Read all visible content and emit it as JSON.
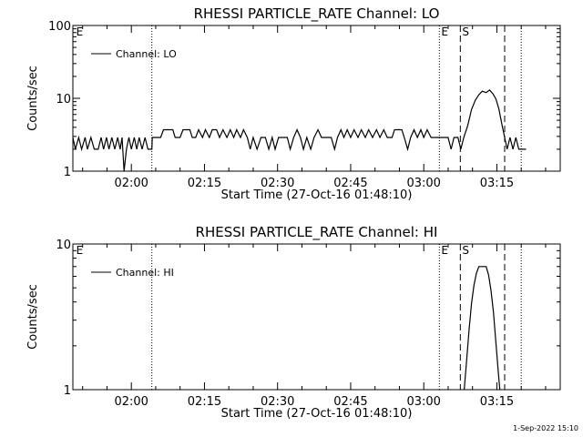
{
  "footer": {
    "timestamp": "1-Sep-2022 15:10"
  },
  "chart_data": [
    {
      "type": "line",
      "title": "RHESSI PARTICLE_RATE Channel: LO",
      "xlabel": "Start Time (27-Oct-16 01:48:10)",
      "ylabel": "Counts/sec",
      "yscale": "log",
      "ylim": [
        1,
        100
      ],
      "xlim_minutes_after_01_48": [
        0,
        100
      ],
      "yticks": [
        {
          "value": 1,
          "label": "1"
        },
        {
          "value": 10,
          "label": "10"
        },
        {
          "value": 100,
          "label": "100"
        }
      ],
      "xticks": [
        {
          "t": 12,
          "label": "02:00"
        },
        {
          "t": 27,
          "label": "02:15"
        },
        {
          "t": 42,
          "label": "02:30"
        },
        {
          "t": 57,
          "label": "02:45"
        },
        {
          "t": 72,
          "label": "03:00"
        },
        {
          "t": 87,
          "label": "03:15"
        }
      ],
      "legend": {
        "label": "Channel: LO",
        "placement": "top-left"
      },
      "markers": [
        {
          "t": 0.3,
          "label": "E",
          "style": "none"
        },
        {
          "t": 16.2,
          "label": "",
          "style": "dotted"
        },
        {
          "t": 75.2,
          "label": "E",
          "style": "dotted"
        },
        {
          "t": 79.5,
          "label": "S",
          "style": "dashed"
        },
        {
          "t": 88.6,
          "label": "",
          "style": "dashed"
        },
        {
          "t": 92.0,
          "label": "",
          "style": "dotted"
        }
      ],
      "series": [
        {
          "name": "Channel: LO",
          "points": [
            [
              0,
              2.9
            ],
            [
              0.5,
              2.0
            ],
            [
              1.2,
              2.9
            ],
            [
              1.8,
              2.0
            ],
            [
              2.5,
              2.9
            ],
            [
              3.0,
              2.0
            ],
            [
              3.7,
              2.9
            ],
            [
              4.4,
              2.0
            ],
            [
              5.2,
              2.0
            ],
            [
              5.8,
              2.9
            ],
            [
              6.3,
              2.0
            ],
            [
              6.9,
              2.9
            ],
            [
              7.4,
              2.0
            ],
            [
              8.0,
              2.9
            ],
            [
              8.6,
              2.0
            ],
            [
              9.2,
              2.9
            ],
            [
              9.7,
              2.0
            ],
            [
              10.1,
              2.9
            ],
            [
              10.5,
              1.0
            ],
            [
              11.0,
              2.0
            ],
            [
              11.5,
              2.9
            ],
            [
              12.0,
              2.0
            ],
            [
              12.6,
              2.9
            ],
            [
              13.1,
              2.0
            ],
            [
              13.6,
              2.9
            ],
            [
              14.2,
              2.0
            ],
            [
              14.8,
              2.9
            ],
            [
              15.4,
              2.0
            ],
            [
              16.2,
              2.0
            ],
            [
              16.3,
              2.9
            ],
            [
              18.0,
              2.9
            ],
            [
              18.6,
              3.7
            ],
            [
              20.5,
              3.7
            ],
            [
              21.0,
              2.9
            ],
            [
              22.0,
              2.9
            ],
            [
              22.6,
              3.7
            ],
            [
              24.0,
              3.7
            ],
            [
              24.5,
              2.9
            ],
            [
              25.2,
              2.9
            ],
            [
              25.8,
              3.7
            ],
            [
              26.6,
              2.9
            ],
            [
              27.2,
              3.7
            ],
            [
              28.0,
              2.9
            ],
            [
              28.6,
              3.7
            ],
            [
              29.5,
              3.7
            ],
            [
              30.1,
              2.9
            ],
            [
              30.8,
              3.7
            ],
            [
              31.6,
              2.9
            ],
            [
              32.3,
              3.7
            ],
            [
              33.0,
              2.9
            ],
            [
              33.6,
              3.7
            ],
            [
              34.4,
              2.9
            ],
            [
              35.0,
              3.7
            ],
            [
              35.8,
              2.9
            ],
            [
              36.4,
              2.0
            ],
            [
              37.0,
              2.9
            ],
            [
              37.8,
              2.0
            ],
            [
              38.6,
              2.9
            ],
            [
              39.5,
              2.9
            ],
            [
              40.2,
              2.0
            ],
            [
              40.9,
              2.9
            ],
            [
              41.5,
              2.0
            ],
            [
              42.2,
              2.9
            ],
            [
              44.0,
              2.9
            ],
            [
              44.6,
              2.0
            ],
            [
              45.3,
              2.9
            ],
            [
              46.0,
              3.7
            ],
            [
              46.7,
              2.9
            ],
            [
              47.3,
              2.0
            ],
            [
              48.0,
              2.9
            ],
            [
              48.8,
              2.0
            ],
            [
              49.5,
              2.9
            ],
            [
              50.3,
              3.7
            ],
            [
              51.0,
              2.9
            ],
            [
              53.0,
              2.9
            ],
            [
              53.7,
              2.0
            ],
            [
              54.3,
              2.9
            ],
            [
              55.0,
              3.7
            ],
            [
              55.6,
              2.9
            ],
            [
              56.3,
              3.7
            ],
            [
              57.0,
              2.9
            ],
            [
              57.7,
              3.7
            ],
            [
              58.5,
              2.9
            ],
            [
              59.2,
              3.7
            ],
            [
              60.0,
              2.9
            ],
            [
              60.7,
              3.7
            ],
            [
              61.5,
              2.9
            ],
            [
              62.3,
              3.7
            ],
            [
              63.0,
              2.9
            ],
            [
              63.8,
              3.7
            ],
            [
              64.5,
              2.9
            ],
            [
              65.5,
              2.9
            ],
            [
              66.0,
              3.7
            ],
            [
              67.5,
              3.7
            ],
            [
              68.0,
              2.9
            ],
            [
              68.7,
              2.0
            ],
            [
              69.3,
              2.9
            ],
            [
              70.0,
              3.7
            ],
            [
              70.7,
              2.9
            ],
            [
              71.4,
              3.7
            ],
            [
              72.0,
              2.9
            ],
            [
              72.7,
              3.7
            ],
            [
              73.5,
              2.9
            ],
            [
              77.0,
              2.9
            ],
            [
              77.6,
              2.0
            ],
            [
              78.2,
              2.9
            ],
            [
              79.0,
              2.9
            ],
            [
              79.6,
              2.0
            ],
            [
              80.2,
              2.9
            ],
            [
              81.0,
              4.2
            ],
            [
              81.8,
              7.0
            ],
            [
              82.6,
              9.5
            ],
            [
              83.3,
              11.2
            ],
            [
              84.0,
              12.5
            ],
            [
              84.8,
              12.0
            ],
            [
              85.5,
              13.0
            ],
            [
              86.2,
              11.5
            ],
            [
              86.8,
              9.8
            ],
            [
              87.4,
              7.2
            ],
            [
              88.0,
              4.5
            ],
            [
              88.6,
              2.9
            ],
            [
              89.1,
              2.0
            ],
            [
              89.7,
              2.9
            ],
            [
              90.3,
              2.0
            ],
            [
              90.9,
              2.9
            ],
            [
              91.5,
              2.0
            ],
            [
              93.0,
              2.0
            ]
          ]
        }
      ]
    },
    {
      "type": "line",
      "title": "RHESSI PARTICLE_RATE Channel: HI",
      "xlabel": "Start Time (27-Oct-16 01:48:10)",
      "ylabel": "Counts/sec",
      "yscale": "log",
      "ylim": [
        1,
        10
      ],
      "xlim_minutes_after_01_48": [
        0,
        100
      ],
      "yticks": [
        {
          "value": 1,
          "label": "1"
        },
        {
          "value": 10,
          "label": "10"
        }
      ],
      "xticks": [
        {
          "t": 12,
          "label": "02:00"
        },
        {
          "t": 27,
          "label": "02:15"
        },
        {
          "t": 42,
          "label": "02:30"
        },
        {
          "t": 57,
          "label": "02:45"
        },
        {
          "t": 72,
          "label": "03:00"
        },
        {
          "t": 87,
          "label": "03:15"
        }
      ],
      "legend": {
        "label": "Channel: HI",
        "placement": "top-left"
      },
      "markers": [
        {
          "t": 0.3,
          "label": "E",
          "style": "none"
        },
        {
          "t": 16.2,
          "label": "",
          "style": "dotted"
        },
        {
          "t": 75.2,
          "label": "E",
          "style": "dotted"
        },
        {
          "t": 79.5,
          "label": "S",
          "style": "dashed"
        },
        {
          "t": 88.6,
          "label": "",
          "style": "dashed"
        },
        {
          "t": 92.0,
          "label": "",
          "style": "dotted"
        }
      ],
      "series": [
        {
          "name": "Channel: HI",
          "points": [
            [
              80.3,
              1.0
            ],
            [
              80.8,
              1.6
            ],
            [
              81.3,
              2.6
            ],
            [
              81.8,
              3.9
            ],
            [
              82.3,
              5.2
            ],
            [
              82.8,
              6.3
            ],
            [
              83.3,
              7.0
            ],
            [
              84.0,
              7.0
            ],
            [
              84.8,
              7.0
            ],
            [
              85.3,
              6.1
            ],
            [
              85.8,
              4.8
            ],
            [
              86.3,
              3.4
            ],
            [
              86.8,
              2.1
            ],
            [
              87.3,
              1.3
            ],
            [
              87.6,
              1.0
            ]
          ]
        }
      ]
    }
  ]
}
